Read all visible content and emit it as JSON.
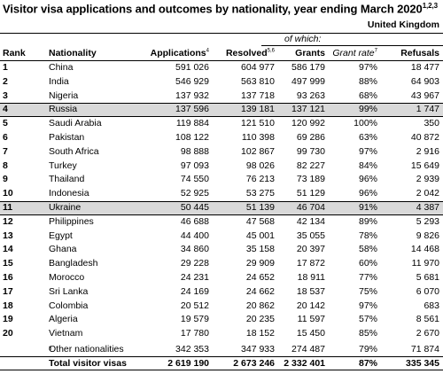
{
  "title": "Visitor visa applications and outcomes by nationality, year ending March 2020",
  "title_sup": "1,2,3",
  "region": "United Kingdom",
  "subheader": "of which:",
  "headers": {
    "rank": "Rank",
    "nationality": "Nationality",
    "applications": "Applications",
    "applications_sup": "4",
    "resolved": "Resolved",
    "resolved_sup": "5,6",
    "grants": "Grants",
    "grant_rate": "Grant rate",
    "grant_rate_sup": "7",
    "refusals": "Refusals"
  },
  "rows": [
    {
      "rank": "1",
      "nationality": "China",
      "applications": "591 026",
      "resolved": "604 977",
      "grants": "586 179",
      "grant_rate": "97%",
      "refusals": "18 477",
      "highlight": false
    },
    {
      "rank": "2",
      "nationality": "India",
      "applications": "546 929",
      "resolved": "563 810",
      "grants": "497 999",
      "grant_rate": "88%",
      "refusals": "64 903",
      "highlight": false
    },
    {
      "rank": "3",
      "nationality": "Nigeria",
      "applications": "137 932",
      "resolved": "137 718",
      "grants": "93 263",
      "grant_rate": "68%",
      "refusals": "43 967",
      "highlight": false
    },
    {
      "rank": "4",
      "nationality": "Russia",
      "applications": "137 596",
      "resolved": "139 181",
      "grants": "137 121",
      "grant_rate": "99%",
      "refusals": "1 747",
      "highlight": true
    },
    {
      "rank": "5",
      "nationality": "Saudi Arabia",
      "applications": "119 884",
      "resolved": "121 510",
      "grants": "120 992",
      "grant_rate": "100%",
      "refusals": "350",
      "highlight": false
    },
    {
      "rank": "6",
      "nationality": "Pakistan",
      "applications": "108 122",
      "resolved": "110 398",
      "grants": "69 286",
      "grant_rate": "63%",
      "refusals": "40 872",
      "highlight": false
    },
    {
      "rank": "7",
      "nationality": "South Africa",
      "applications": "98 888",
      "resolved": "102 867",
      "grants": "99 730",
      "grant_rate": "97%",
      "refusals": "2 916",
      "highlight": false
    },
    {
      "rank": "8",
      "nationality": "Turkey",
      "applications": "97 093",
      "resolved": "98 026",
      "grants": "82 227",
      "grant_rate": "84%",
      "refusals": "15 649",
      "highlight": false
    },
    {
      "rank": "9",
      "nationality": "Thailand",
      "applications": "74 550",
      "resolved": "76 213",
      "grants": "73 189",
      "grant_rate": "96%",
      "refusals": "2 939",
      "highlight": false
    },
    {
      "rank": "10",
      "nationality": "Indonesia",
      "applications": "52 925",
      "resolved": "53 275",
      "grants": "51 129",
      "grant_rate": "96%",
      "refusals": "2 042",
      "highlight": false
    },
    {
      "rank": "11",
      "nationality": "Ukraine",
      "applications": "50 445",
      "resolved": "51 139",
      "grants": "46 704",
      "grant_rate": "91%",
      "refusals": "4 387",
      "highlight": true
    },
    {
      "rank": "12",
      "nationality": "Philippines",
      "applications": "46 688",
      "resolved": "47 568",
      "grants": "42 134",
      "grant_rate": "89%",
      "refusals": "5 293",
      "highlight": false
    },
    {
      "rank": "13",
      "nationality": "Egypt",
      "applications": "44 400",
      "resolved": "45 001",
      "grants": "35 055",
      "grant_rate": "78%",
      "refusals": "9 826",
      "highlight": false
    },
    {
      "rank": "14",
      "nationality": "Ghana",
      "applications": "34 860",
      "resolved": "35 158",
      "grants": "20 397",
      "grant_rate": "58%",
      "refusals": "14 468",
      "highlight": false
    },
    {
      "rank": "15",
      "nationality": "Bangladesh",
      "applications": "29 228",
      "resolved": "29 909",
      "grants": "17 872",
      "grant_rate": "60%",
      "refusals": "11 970",
      "highlight": false
    },
    {
      "rank": "16",
      "nationality": "Morocco",
      "applications": "24 231",
      "resolved": "24 652",
      "grants": "18 911",
      "grant_rate": "77%",
      "refusals": "5 681",
      "highlight": false
    },
    {
      "rank": "17",
      "nationality": "Sri Lanka",
      "applications": "24 169",
      "resolved": "24 662",
      "grants": "18 537",
      "grant_rate": "75%",
      "refusals": "6 070",
      "highlight": false
    },
    {
      "rank": "18",
      "nationality": "Colombia",
      "applications": "20 512",
      "resolved": "20 862",
      "grants": "20 142",
      "grant_rate": "97%",
      "refusals": "683",
      "highlight": false
    },
    {
      "rank": "19",
      "nationality": "Algeria",
      "applications": "19 579",
      "resolved": "20 235",
      "grants": "11 597",
      "grant_rate": "57%",
      "refusals": "8 561",
      "highlight": false
    },
    {
      "rank": "20",
      "nationality": "Vietnam",
      "applications": "17 780",
      "resolved": "18 152",
      "grants": "15 450",
      "grant_rate": "85%",
      "refusals": "2 670",
      "highlight": false
    }
  ],
  "other": {
    "label": "Other nationalities",
    "label_sup": "8",
    "applications": "342 353",
    "resolved": "347 933",
    "grants": "274 487",
    "grant_rate": "79%",
    "refusals": "71 874"
  },
  "total": {
    "label": "Total visitor visas",
    "applications": "2 619 190",
    "resolved": "2 673 246",
    "grants": "2 332 401",
    "grant_rate": "87%",
    "refusals": "335 345"
  }
}
